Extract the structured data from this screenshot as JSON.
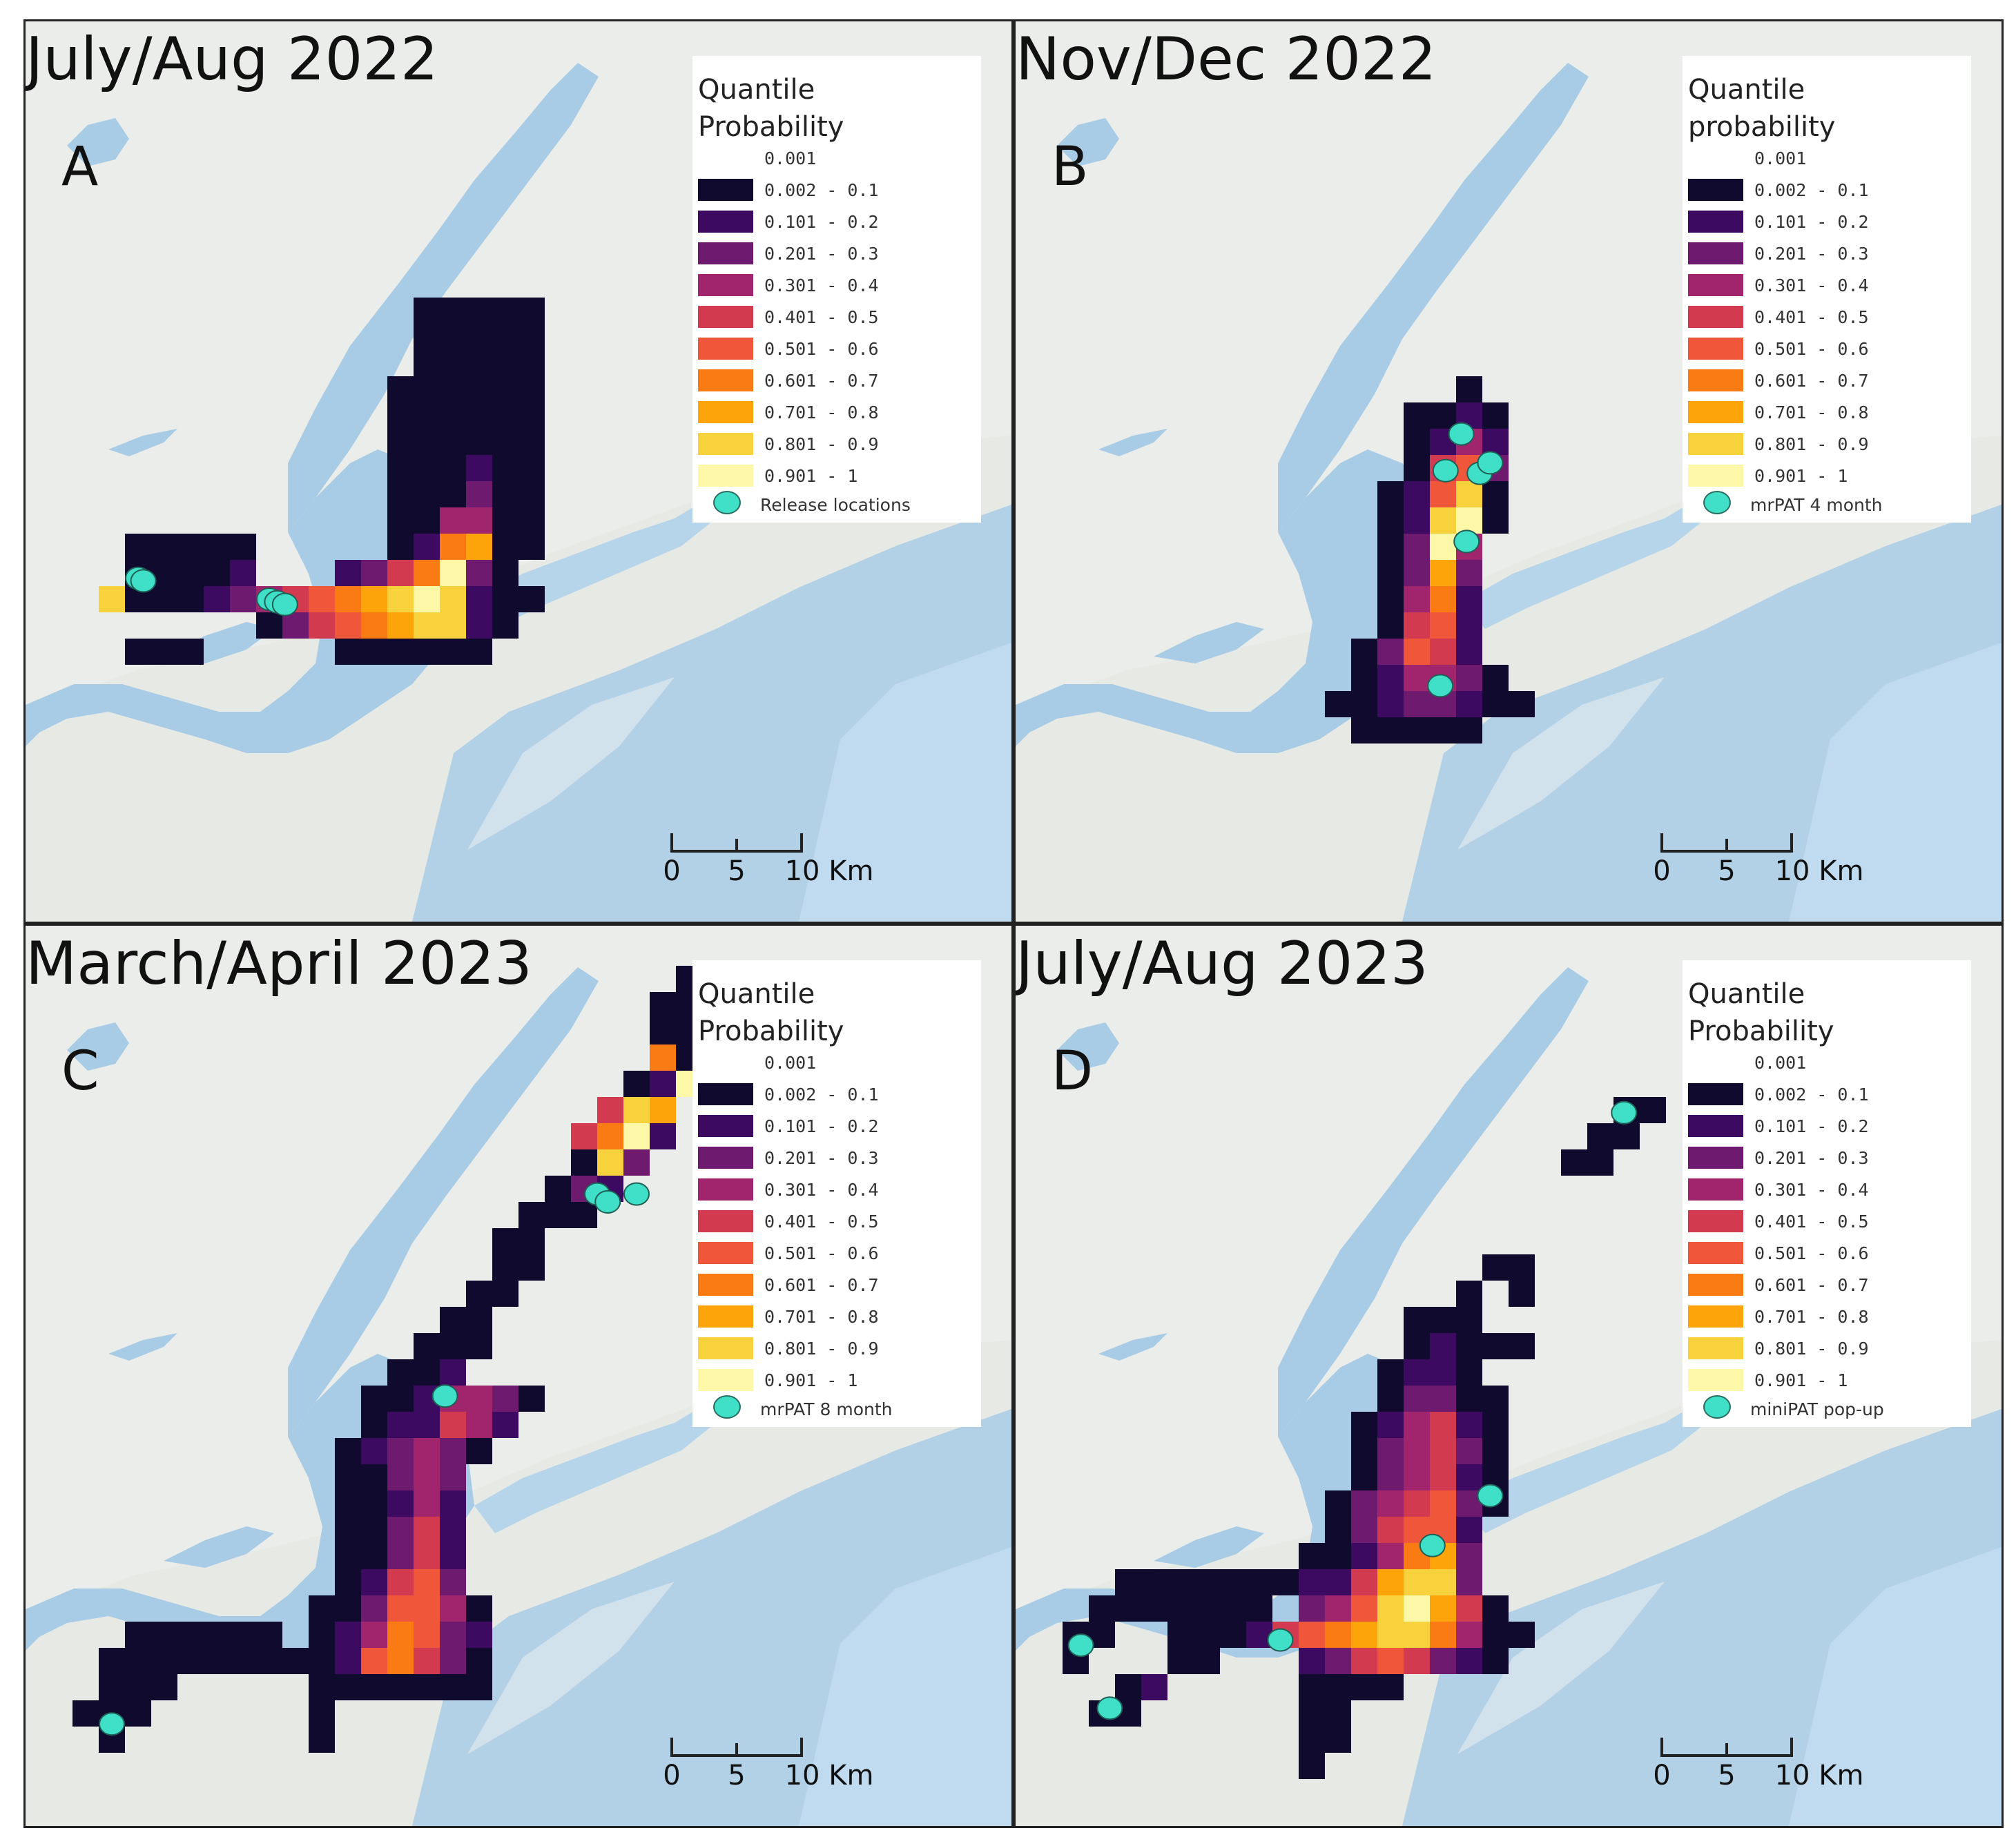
{
  "legend_bins": [
    "0.001",
    "0.002 - 0.1",
    "0.101 - 0.2",
    "0.201 - 0.3",
    "0.301 - 0.4",
    "0.401 - 0.5",
    "0.501 - 0.6",
    "0.601 - 0.7",
    "0.701 - 0.8",
    "0.801 - 0.9",
    "0.901 - 1"
  ],
  "legend_colors": [
    "#ffffff",
    "#100a2e",
    "#3d0a62",
    "#6e1a6e",
    "#a0256c",
    "#d23a50",
    "#f0563a",
    "#fa7a14",
    "#fca40a",
    "#f8d23c",
    "#fcf8a8"
  ],
  "marker_color": "#40e0c8",
  "scale": {
    "ticks": [
      "0",
      "5",
      "10 Km"
    ]
  },
  "panels": [
    {
      "title": "July/Aug 2022",
      "letter": "A",
      "legend_title_line1": "Quantile",
      "legend_title_line2": "Probability",
      "marker_label": "Release locations"
    },
    {
      "title": "Nov/Dec 2022",
      "letter": "B",
      "legend_title_line1": "Quantile",
      "legend_title_line2": "probability",
      "marker_label": "mrPAT 4 month"
    },
    {
      "title": "March/April 2023",
      "letter": "C",
      "legend_title_line1": "Quantile",
      "legend_title_line2": "Probability",
      "marker_label": "mrPAT 8 month"
    },
    {
      "title": "July/Aug 2023",
      "letter": "D",
      "legend_title_line1": "Quantile",
      "legend_title_line2": "Probability",
      "marker_label": "miniPAT pop-up"
    }
  ]
}
